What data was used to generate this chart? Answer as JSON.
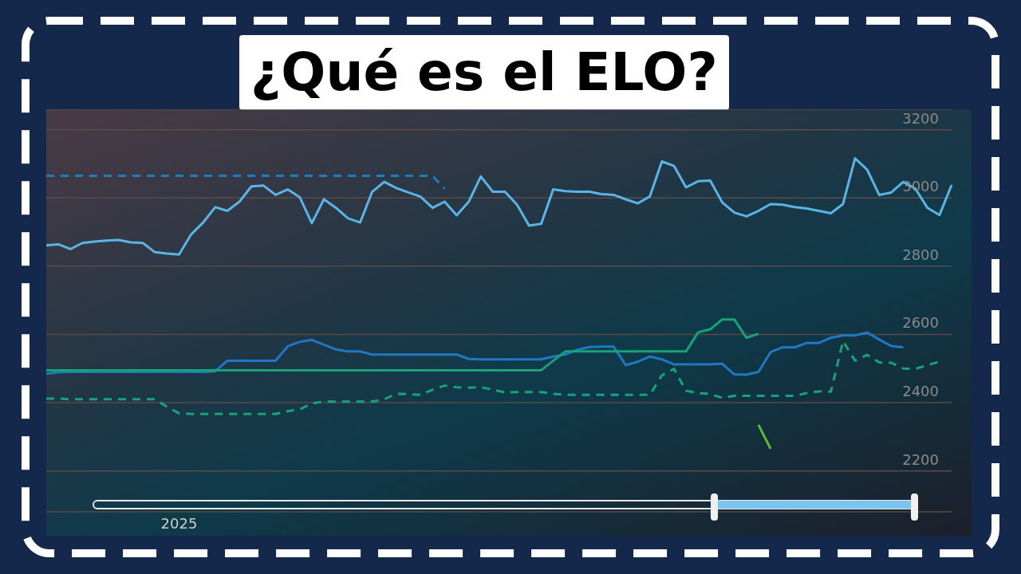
{
  "chart_data": {
    "type": "line",
    "title": "¿Qué es el ELO?",
    "categories": [
      null,
      null,
      null,
      null,
      null,
      null,
      null,
      null,
      null,
      null,
      null,
      "2025",
      null,
      null,
      null,
      null,
      null,
      null,
      null,
      null,
      null,
      null,
      null,
      null,
      null,
      null,
      null,
      null,
      null,
      null,
      null,
      null,
      null,
      null,
      null,
      null,
      null,
      null,
      null,
      null,
      null,
      null,
      null,
      null,
      null,
      null,
      null,
      null,
      null,
      null,
      null,
      null,
      null,
      null,
      null,
      null,
      null,
      null,
      null,
      null,
      null,
      null,
      null,
      null,
      null,
      null,
      null,
      null,
      null,
      null,
      null,
      null,
      null,
      null,
      null,
      null
    ],
    "series": [
      {
        "color": "#5ab4e6",
        "line_style": "solid",
        "values": [
          2861,
          2864,
          2850,
          2868,
          2872,
          2875,
          2877,
          2870,
          2868,
          2841,
          2837,
          2834,
          2893,
          2928,
          2973,
          2962,
          2989,
          3034,
          3036,
          3009,
          3025,
          3002,
          2926,
          2996,
          2971,
          2940,
          2928,
          3018,
          3047,
          3029,
          3016,
          3004,
          2971,
          2989,
          2949,
          2989,
          3063,
          3018,
          3018,
          2980,
          2919,
          2924,
          3025,
          3020,
          3018,
          3018,
          3011,
          3009,
          2996,
          2984,
          3004,
          3107,
          3094,
          3031,
          3049,
          3051,
          2987,
          2957,
          2946,
          2962,
          2982,
          2980,
          2973,
          2969,
          2962,
          2955,
          2982,
          3116,
          3083,
          3009,
          3016,
          3047,
          3027,
          2971,
          2950,
          3038
        ]
      },
      {
        "color": "#1a7fc0",
        "line_style": "dashed",
        "values": [
          3065,
          3065,
          3065,
          3065,
          3065,
          3065,
          3065,
          3065,
          3065,
          3065,
          3065,
          3065,
          3065,
          3065,
          3065,
          3065,
          3065,
          3065,
          3065,
          3065,
          3065,
          3065,
          3065,
          3065,
          3065,
          3065,
          3065,
          3065,
          3065,
          3065,
          3065,
          3065,
          3065,
          3027,
          null,
          null,
          null,
          null,
          null,
          null,
          null,
          null,
          null,
          null,
          null,
          null,
          null,
          null,
          null,
          null,
          null,
          null,
          null,
          null,
          null,
          null,
          null,
          null,
          null,
          null,
          null,
          null,
          null,
          null,
          null,
          null,
          null,
          null,
          null,
          null,
          null,
          null,
          null,
          null,
          null,
          null
        ]
      },
      {
        "color": "#1f78c1",
        "line_style": "solid",
        "values": [
          2485,
          2489,
          2490,
          2490,
          2490,
          2490,
          2490,
          2490,
          2490,
          2490,
          2490,
          2490,
          2490,
          2490,
          2492,
          2523,
          2523,
          2523,
          2523,
          2523,
          2565,
          2578,
          2584,
          2570,
          2556,
          2550,
          2550,
          2541,
          2541,
          2541,
          2541,
          2541,
          2541,
          2541,
          2541,
          2528,
          2527,
          2527,
          2527,
          2527,
          2527,
          2527,
          2535,
          2541,
          2555,
          2563,
          2564,
          2564,
          2510,
          2520,
          2535,
          2527,
          2512,
          2512,
          2512,
          2512,
          2514,
          2483,
          2482,
          2490,
          2548,
          2562,
          2562,
          2575,
          2575,
          2590,
          2597,
          2597,
          2605,
          2585,
          2566,
          2562,
          null,
          null,
          null,
          null
        ]
      },
      {
        "color": "#16a37a",
        "line_style": "solid",
        "values": [
          2495,
          2495,
          2495,
          2495,
          2495,
          2495,
          2495,
          2495,
          2495,
          2495,
          2495,
          2495,
          2495,
          2495,
          2495,
          2495,
          2495,
          2495,
          2495,
          2495,
          2495,
          2495,
          2495,
          2495,
          2495,
          2495,
          2495,
          2495,
          2495,
          2495,
          2495,
          2495,
          2495,
          2495,
          2495,
          2495,
          2495,
          2495,
          2495,
          2495,
          2495,
          2495,
          2523,
          2550,
          2550,
          2550,
          2550,
          2550,
          2550,
          2550,
          2550,
          2550,
          2550,
          2550,
          2606,
          2615,
          2644,
          2644,
          2590,
          2602,
          null,
          null,
          null,
          null,
          null,
          null,
          null,
          null,
          null,
          null,
          null,
          null,
          null,
          null,
          null,
          null
        ]
      },
      {
        "color": "#16a37a",
        "line_style": "dashed",
        "values": [
          2412,
          2412,
          2410,
          2410,
          2410,
          2410,
          2410,
          2410,
          2410,
          2410,
          2388,
          2369,
          2367,
          2367,
          2367,
          2367,
          2367,
          2367,
          2367,
          2367,
          2375,
          2380,
          2398,
          2403,
          2403,
          2403,
          2403,
          2403,
          2410,
          2426,
          2425,
          2423,
          2438,
          2450,
          2445,
          2444,
          2445,
          2438,
          2430,
          2431,
          2431,
          2431,
          2426,
          2423,
          2423,
          2423,
          2423,
          2423,
          2423,
          2423,
          2423,
          2480,
          2499,
          2435,
          2428,
          2425,
          2414,
          2420,
          2420,
          2420,
          2420,
          2420,
          2420,
          2428,
          2433,
          2432,
          2580,
          2523,
          2540,
          2518,
          2517,
          2500,
          2499,
          2510,
          2520,
          null
        ]
      },
      {
        "color": "#5dbb3a",
        "line_style": "solid",
        "values": [
          null,
          null,
          null,
          null,
          null,
          null,
          null,
          null,
          null,
          null,
          null,
          null,
          null,
          null,
          null,
          null,
          null,
          null,
          null,
          null,
          null,
          null,
          null,
          null,
          null,
          null,
          null,
          null,
          null,
          null,
          null,
          null,
          null,
          null,
          null,
          null,
          null,
          null,
          null,
          null,
          null,
          null,
          null,
          null,
          null,
          null,
          null,
          null,
          null,
          null,
          null,
          null,
          null,
          null,
          null,
          null,
          null,
          null,
          null,
          2335,
          2265,
          null,
          null,
          null,
          null,
          null,
          null,
          null,
          null,
          null,
          null,
          null,
          null,
          null,
          null,
          null
        ]
      }
    ],
    "ylim": [
      2080,
      3260
    ],
    "yticks": [
      2200,
      2400,
      2600,
      2800,
      3000,
      3200
    ],
    "grid": "y",
    "legend": false,
    "marker": "none"
  }
}
